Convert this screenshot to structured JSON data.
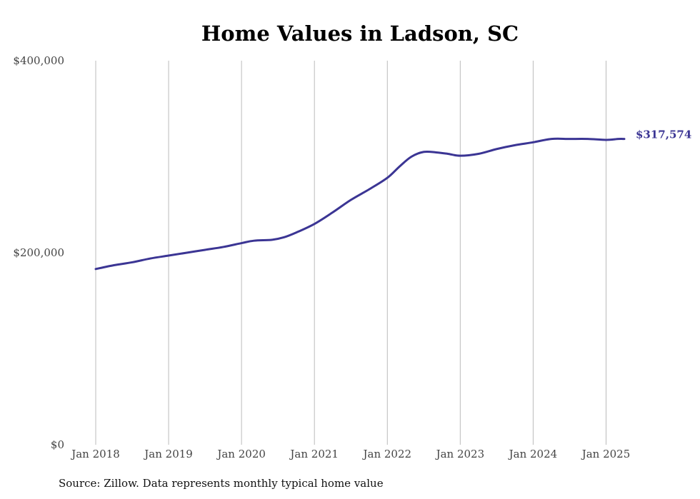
{
  "chart_data": {
    "type": "line",
    "title": "Home Values in Ladson, SC",
    "xlabel": "",
    "ylabel": "",
    "ylim": [
      0,
      400000
    ],
    "y_ticks": [
      {
        "value": 0,
        "label": "$0"
      },
      {
        "value": 200000,
        "label": "$200,000"
      },
      {
        "value": 400000,
        "label": "$400,000"
      }
    ],
    "x_ticks": [
      {
        "value": 2018,
        "label": "Jan 2018"
      },
      {
        "value": 2019,
        "label": "Jan 2019"
      },
      {
        "value": 2020,
        "label": "Jan 2020"
      },
      {
        "value": 2021,
        "label": "Jan 2021"
      },
      {
        "value": 2022,
        "label": "Jan 2022"
      },
      {
        "value": 2023,
        "label": "Jan 2023"
      },
      {
        "value": 2024,
        "label": "Jan 2024"
      },
      {
        "value": 2025,
        "label": "Jan 2025"
      }
    ],
    "xlim": [
      2018,
      2025.25
    ],
    "grid": {
      "vertical": true,
      "horizontal": false
    },
    "line_color": "#3b3594",
    "grid_color": "#bbbbbb",
    "series": [
      {
        "x": [
          2018.0,
          2018.25,
          2018.5,
          2018.75,
          2019.0,
          2019.25,
          2019.5,
          2019.75,
          2020.0,
          2020.17,
          2020.42,
          2020.58,
          2020.75,
          2021.0,
          2021.25,
          2021.5,
          2021.75,
          2022.0,
          2022.17,
          2022.33,
          2022.5,
          2022.67,
          2022.83,
          2023.0,
          2023.25,
          2023.5,
          2023.75,
          2024.0,
          2024.25,
          2024.5,
          2024.75,
          2025.0,
          2025.17,
          2025.25
        ],
        "y": [
          183000,
          187000,
          190000,
          194000,
          197000,
          200000,
          203000,
          206000,
          210000,
          212500,
          213500,
          216000,
          221000,
          230000,
          242000,
          255000,
          266000,
          278000,
          290000,
          300000,
          305000,
          304500,
          303000,
          301000,
          303000,
          308000,
          312000,
          315000,
          318500,
          318500,
          318500,
          317500,
          318500,
          318500
        ],
        "end_label": "$317,574"
      }
    ],
    "source": "Source: Zillow. Data represents monthly typical home value"
  }
}
